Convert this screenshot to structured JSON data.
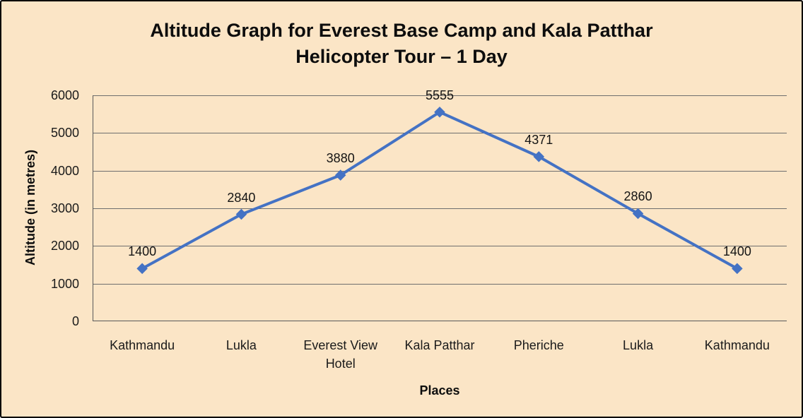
{
  "window": {
    "background": "#FBE5C6",
    "border_color": "#000000"
  },
  "chart_data": {
    "type": "line",
    "title": "Altitude Graph for Everest Base Camp and Kala Patthar Helicopter Tour – 1 Day",
    "title_lines": [
      "Altitude Graph for Everest Base Camp and Kala Patthar",
      "Helicopter Tour – 1 Day"
    ],
    "xlabel": "Places",
    "ylabel": "Altitude (in metres)",
    "categories": [
      "Kathmandu",
      "Lukla",
      "Everest View Hotel",
      "Kala Patthar",
      "Pheriche",
      "Lukla",
      "Kathmandu"
    ],
    "series": [
      {
        "name": "Altitude",
        "values": [
          1400,
          2840,
          3880,
          5555,
          4371,
          2860,
          1400
        ]
      }
    ],
    "values": [
      1400,
      2840,
      3880,
      5555,
      4371,
      2860,
      1400
    ],
    "data_labels": [
      "1400",
      "2840",
      "3880",
      "5555",
      "4371",
      "2860",
      "1400"
    ],
    "ylim": [
      0,
      6000
    ],
    "yticks": [
      0,
      1000,
      2000,
      3000,
      4000,
      5000,
      6000
    ],
    "grid": true,
    "legend": "none",
    "marker_shape": "diamond",
    "colors": {
      "line": "#4472C4",
      "marker": "#4472C4",
      "gridline": "#6E6E6E",
      "axis_line": "#595959",
      "text": "#1a1a1a"
    }
  }
}
